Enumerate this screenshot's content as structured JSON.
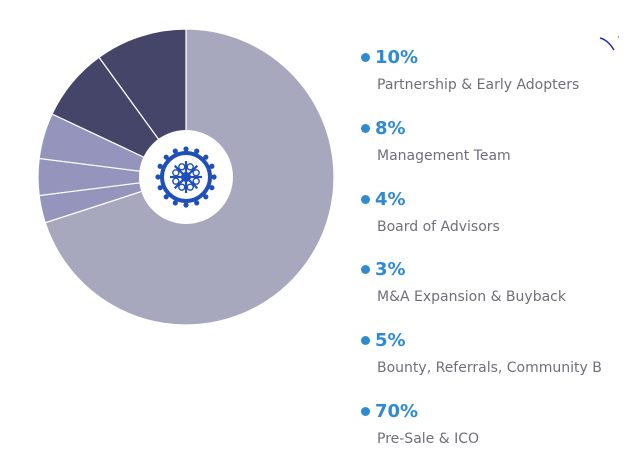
{
  "chart_data": {
    "type": "pie",
    "title": "",
    "slices": [
      {
        "label": "Partnership & Early Adopters",
        "percent_label": "10%",
        "value": 10,
        "color": "#454469"
      },
      {
        "label": "Management Team",
        "percent_label": "8%",
        "value": 8,
        "color": "#454469"
      },
      {
        "label": "Board of Advisors",
        "percent_label": "4%",
        "value": 4,
        "color": "#9594bd"
      },
      {
        "label": "M&A Expansion & Buyback",
        "percent_label": "3%",
        "value": 3,
        "color": "#9594bd"
      },
      {
        "label": "Bounty, Referrals, Community Bui",
        "percent_label": "5%",
        "value": 5,
        "color": "#9594bd"
      },
      {
        "label": "Pre-Sale & ICO",
        "percent_label": "70%",
        "value": 70,
        "color": "#a7a7bd"
      }
    ],
    "legend_position": "right",
    "legend_bullet_color": "#2f8ad0",
    "center_emblem": "blue-wheel-logo"
  }
}
